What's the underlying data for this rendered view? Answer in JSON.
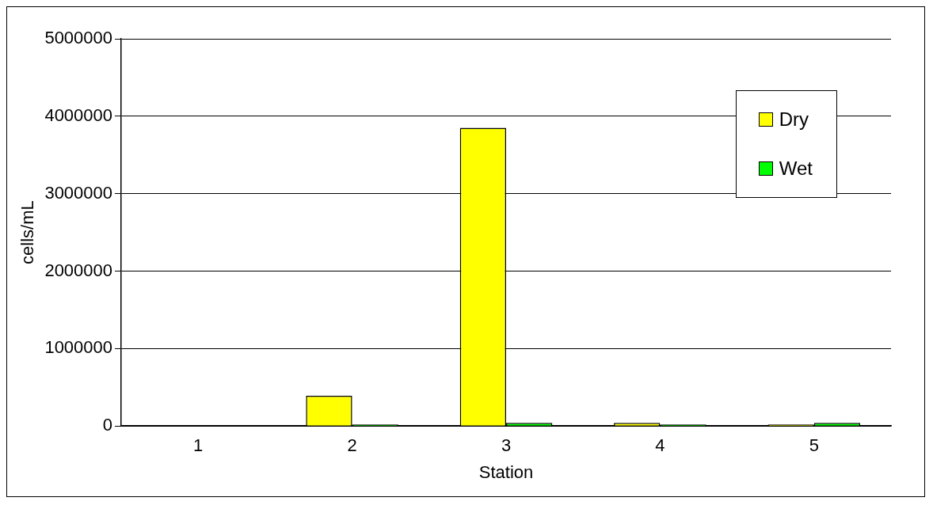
{
  "chart_data": {
    "type": "bar",
    "xlabel": "Station",
    "ylabel": "cells/mL",
    "categories": [
      "1",
      "2",
      "3",
      "4",
      "5"
    ],
    "series": [
      {
        "name": "Dry",
        "color": "#ffff00",
        "values": [
          0,
          390000,
          3850000,
          40000,
          20000
        ]
      },
      {
        "name": "Wet",
        "color": "#00ff00",
        "values": [
          0,
          20000,
          40000,
          20000,
          40000
        ]
      }
    ],
    "ylim": [
      0,
      5000000
    ],
    "yticks": [
      0,
      1000000,
      2000000,
      3000000,
      4000000,
      5000000
    ],
    "grid": "y",
    "legend": "top right"
  }
}
